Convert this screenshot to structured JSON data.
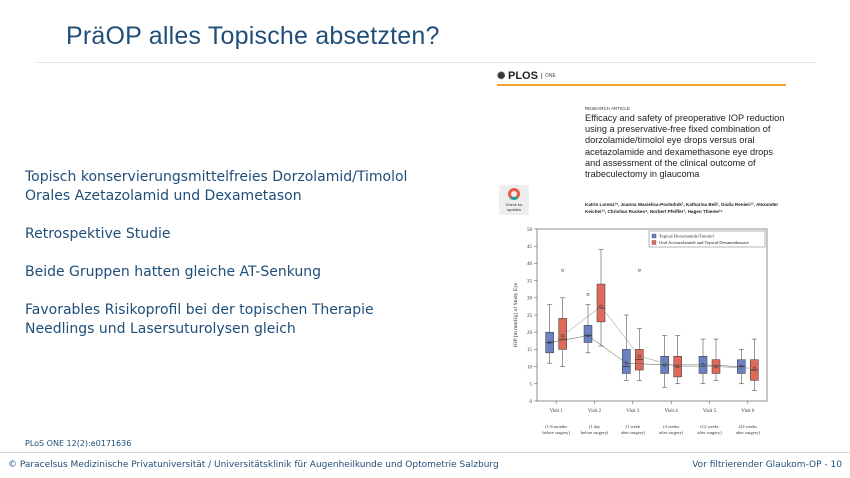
{
  "slide": {
    "title": "PräOP alles Topische absetzten?",
    "bullets": [
      "Topisch konservierungsmittelfreies Dorzolamid/Timolol",
      "Orales Azetazolamid und Dexametason",
      "",
      "Retrospektive Studie",
      "",
      "Beide Gruppen hatten gleiche AT-Senkung",
      "",
      "Favorables Risikoprofil bei der topischen Therapie",
      "Needlings und Lasersuturolysen gleich"
    ],
    "citation": "PLoS ONE 12(2):e0171636",
    "footer_left": "© Paracelsus Medizinische Privatuniversität / Universitätsklinik für Augenheilkunde und Optometrie Salzburg",
    "footer_right": "Vor filtrierender Glaukom-OP - 10"
  },
  "paper": {
    "journal": "PLOS",
    "journal_suffix": "ONE",
    "article_type": "RESEARCH ARTICLE",
    "title": "Efficacy and safety of preoperative IOP reduction using a preservative-free fixed combination of dorzolamide/timolol eye drops versus oral acetazolamide and dexamethasone eye drops and assessment of the clinical outcome of trabeculectomy in glaucoma",
    "authors": "Katrin Lorenz¹*, Joanna Wasielica-Poslednik¹, Katharina Bell¹, Giulia Renieri¹², Alexander Keicher¹³, Christian Ruckes⁴, Norbert Pfeiffer¹, Hagen Thieme¹⁵",
    "badge": "Check for updates"
  },
  "chart_data": {
    "type": "boxplot",
    "ylabel": "IOP [in mmHg] of Study Eye",
    "ylim": [
      0,
      50
    ],
    "yticks": [
      0,
      5,
      10,
      15,
      20,
      25,
      30,
      35,
      40,
      45,
      50
    ],
    "categories": [
      "Visit 1",
      "Visit 2",
      "Visit 3",
      "Visit 4",
      "Visit 5",
      "Visit 6"
    ],
    "category_sublabels": [
      [
        "(1-6 months",
        "before surgery)"
      ],
      [
        "(1 day",
        "before surgery)"
      ],
      [
        "(1 week",
        "after surgery)"
      ],
      [
        "(4 weeks",
        "after surgery)"
      ],
      [
        "(12 weeks",
        "after surgery)"
      ],
      [
        "(24 weeks",
        "after surgery)"
      ]
    ],
    "legend_position": "top-right",
    "series": [
      {
        "name": "Topical Dorzolamide/Timolol",
        "color": "#6a82c2",
        "boxes": [
          {
            "min": 11,
            "q1": 14,
            "median": 17,
            "q3": 20,
            "max": 28,
            "mean": 17,
            "outliers": []
          },
          {
            "min": 14,
            "q1": 17,
            "median": 19,
            "q3": 22,
            "max": 28,
            "mean": 19,
            "outliers": [
              31
            ]
          },
          {
            "min": 6,
            "q1": 8,
            "median": 10,
            "q3": 15,
            "max": 25,
            "mean": 11,
            "outliers": []
          },
          {
            "min": 4,
            "q1": 8,
            "median": 10.5,
            "q3": 13,
            "max": 19,
            "mean": 10.5,
            "outliers": []
          },
          {
            "min": 5,
            "q1": 8,
            "median": 10,
            "q3": 13,
            "max": 18,
            "mean": 10.5,
            "outliers": []
          },
          {
            "min": 5,
            "q1": 8,
            "median": 10,
            "q3": 12,
            "max": 15,
            "mean": 10,
            "outliers": []
          }
        ]
      },
      {
        "name": "Oral Acetazolamide and Topical Dexamethasone",
        "color": "#e06a5a",
        "boxes": [
          {
            "min": 10,
            "q1": 15,
            "median": 18,
            "q3": 24,
            "max": 30,
            "mean": 19,
            "outliers": [
              38
            ]
          },
          {
            "min": 16,
            "q1": 23,
            "median": 27,
            "q3": 34,
            "max": 44,
            "mean": 27.5,
            "outliers": []
          },
          {
            "min": 6,
            "q1": 9,
            "median": 12,
            "q3": 15,
            "max": 21,
            "mean": 13,
            "outliers": [
              38
            ]
          },
          {
            "min": 5,
            "q1": 7,
            "median": 10,
            "q3": 13,
            "max": 19,
            "mean": 10,
            "outliers": []
          },
          {
            "min": 6,
            "q1": 8,
            "median": 10,
            "q3": 12,
            "max": 18,
            "mean": 10,
            "outliers": []
          },
          {
            "min": 3,
            "q1": 6,
            "median": 9,
            "q3": 12,
            "max": 18,
            "mean": 9.5,
            "outliers": []
          }
        ]
      }
    ]
  }
}
